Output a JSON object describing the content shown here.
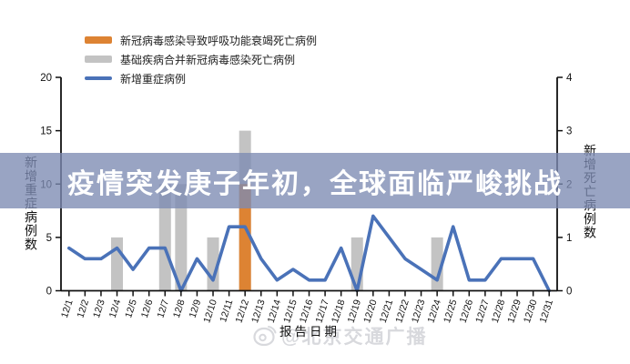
{
  "banner": {
    "text": "疫情突发庚子年初，全球面临严峻挑战",
    "bg_color": "#7c8bb2",
    "text_color": "#ffffff"
  },
  "watermark": {
    "text": "@北京交通广播",
    "icon": "weibo-eye-icon",
    "color": "#d2d3d8"
  },
  "chart_data": {
    "type": "bar+line combo",
    "categories": [
      "12/1",
      "12/2",
      "12/3",
      "12/4",
      "12/5",
      "12/6",
      "12/7",
      "12/8",
      "12/9",
      "12/10",
      "12/11",
      "12/12",
      "12/13",
      "12/14",
      "12/15",
      "12/16",
      "12/17",
      "12/18",
      "12/19",
      "12/20",
      "12/21",
      "12/22",
      "12/23",
      "12/24",
      "12/25",
      "12/26",
      "12/27",
      "12/28",
      "12/29",
      "12/30",
      "12/31"
    ],
    "series": [
      {
        "name": "新冠病毒感染导致呼吸功能衰竭死亡病例",
        "type": "bar",
        "axis": "right",
        "color": "#dd8333",
        "values": [
          0,
          0,
          0,
          0,
          0,
          0,
          0,
          0,
          0,
          0,
          0,
          2,
          0,
          0,
          0,
          0,
          0,
          0,
          0,
          0,
          0,
          0,
          0,
          0,
          0,
          0,
          0,
          0,
          0,
          0,
          0
        ]
      },
      {
        "name": "基础疾病合并新冠病毒感染死亡病例",
        "type": "bar",
        "axis": "right",
        "color": "#c3c3c3",
        "values": [
          0,
          0,
          0,
          1,
          0,
          0,
          2,
          2,
          0,
          1,
          0,
          3,
          0,
          0,
          0,
          0,
          0,
          0,
          1,
          0,
          0,
          0,
          0,
          1,
          0,
          0,
          0,
          0,
          0,
          0,
          0
        ]
      },
      {
        "name": "新增重症病例",
        "type": "line",
        "axis": "left",
        "color": "#4a72b8",
        "values": [
          4,
          3,
          3,
          4,
          2,
          4,
          4,
          0,
          3,
          1,
          6,
          6,
          3,
          1,
          2,
          1,
          1,
          4,
          0,
          7,
          5,
          3,
          2,
          1,
          6,
          1,
          1,
          3,
          3,
          3,
          0
        ]
      }
    ],
    "left_axis": {
      "title": "新增重症病例数",
      "min": 0,
      "max": 20,
      "ticks": [
        0,
        5,
        10,
        15,
        20
      ]
    },
    "right_axis": {
      "title": "新增死亡病例数",
      "min": 0,
      "max": 4,
      "ticks": [
        0,
        1,
        2,
        3,
        4
      ]
    },
    "x_axis": {
      "title": "报告日期"
    },
    "legend_position": "top-left",
    "grid": false
  }
}
